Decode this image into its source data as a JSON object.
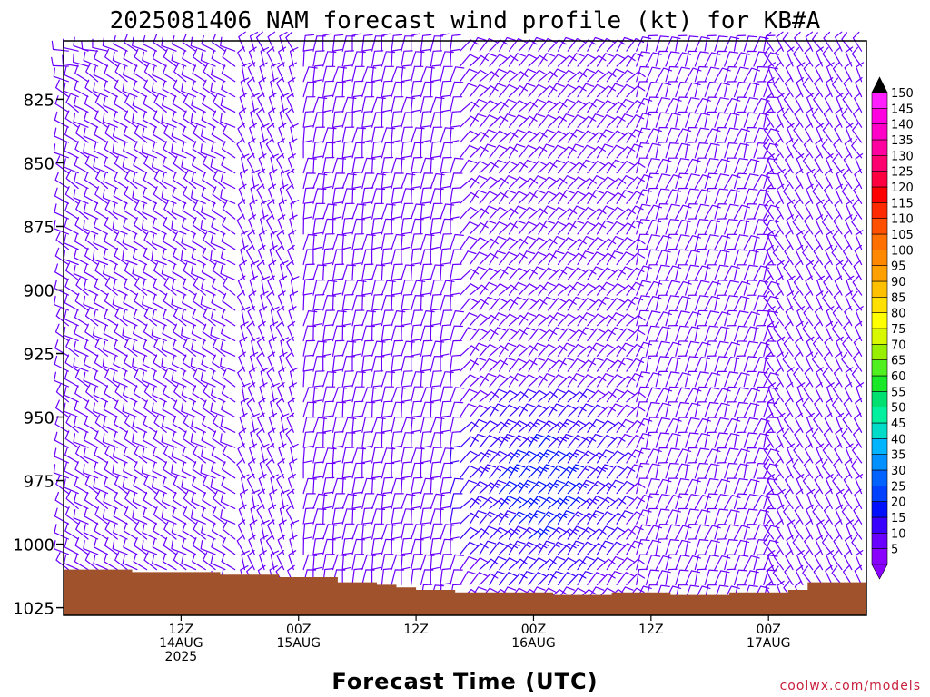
{
  "chart_data": {
    "type": "wind-barb-time-height",
    "title": "2025081406 NAM forecast wind profile (kt) for KB#A",
    "xlabel": "Forecast Time (UTC)",
    "ylabel": "",
    "credit": "coolwx.com/models",
    "y_axis": {
      "ticks": [
        "825",
        "850",
        "875",
        "900",
        "925",
        "950",
        "975",
        "1000",
        "1025"
      ],
      "tick_values": [
        825,
        850,
        875,
        900,
        925,
        950,
        975,
        1000,
        1025
      ],
      "range": [
        802,
        1028
      ],
      "reversed": true
    },
    "x_axis": {
      "range_hours": [
        -6,
        76
      ],
      "ticks": [
        {
          "hour": 6,
          "line1": "12Z",
          "line2": "14AUG",
          "line3": "2025"
        },
        {
          "hour": 18,
          "line1": "00Z",
          "line2": "15AUG",
          "line3": ""
        },
        {
          "hour": 30,
          "line1": "12Z",
          "line2": "",
          "line3": ""
        },
        {
          "hour": 42,
          "line1": "00Z",
          "line2": "16AUG",
          "line3": ""
        },
        {
          "hour": 54,
          "line1": "12Z",
          "line2": "",
          "line3": ""
        },
        {
          "hour": 66,
          "line1": "00Z",
          "line2": "17AUG",
          "line3": ""
        },
        {
          "hour": 78,
          "line1": "12Z",
          "line2": "",
          "line3": ""
        }
      ]
    },
    "terrain": {
      "color": "#a0522d",
      "hours": [
        -6,
        1,
        2,
        10,
        16,
        22,
        26,
        28,
        30,
        34,
        40,
        44,
        50,
        56,
        62,
        68,
        70,
        76
      ],
      "surface_mb": [
        1010,
        1011,
        1011,
        1012,
        1013,
        1015,
        1016,
        1017,
        1018,
        1019,
        1019,
        1020,
        1019,
        1020,
        1019,
        1018,
        1015,
        1014
      ]
    },
    "colorbar": {
      "labels": [
        "5",
        "10",
        "15",
        "20",
        "25",
        "30",
        "35",
        "40",
        "45",
        "50",
        "55",
        "60",
        "65",
        "70",
        "75",
        "80",
        "85",
        "90",
        "95",
        "100",
        "105",
        "110",
        "115",
        "120",
        "125",
        "130",
        "135",
        "140",
        "145",
        "150"
      ],
      "colors": [
        "#8a00ff",
        "#6a00ff",
        "#3a00ff",
        "#0010ff",
        "#0040ff",
        "#0062ff",
        "#0090ff",
        "#00b4ff",
        "#00dcc8",
        "#00f0a0",
        "#00e070",
        "#18e828",
        "#50f020",
        "#98f000",
        "#d8f800",
        "#ffff00",
        "#ffe000",
        "#ffc000",
        "#ffa000",
        "#ff8800",
        "#ff7000",
        "#ff5000",
        "#ff2a00",
        "#ff0000",
        "#ff0040",
        "#ff0070",
        "#ff00a0",
        "#ff00c8",
        "#ff00e0",
        "#ff20ff"
      ]
    },
    "wind_field": {
      "time_step_hours": 1,
      "pressure_levels_mb": [
        806,
        812,
        818,
        824,
        830,
        836,
        842,
        848,
        854,
        860,
        866,
        872,
        878,
        884,
        890,
        896,
        902,
        908,
        914,
        920,
        926,
        932,
        938,
        944,
        950,
        956,
        962,
        968,
        974,
        980,
        986,
        992,
        998,
        1004,
        1010,
        1016,
        1022
      ],
      "direction_regimes": [
        {
          "from_hour": -6,
          "to_hour": 12,
          "direction_deg": 300
        },
        {
          "from_hour": 12,
          "to_hour": 18,
          "direction_deg": 340
        },
        {
          "from_hour": 18,
          "to_hour": 34,
          "direction_deg": 10
        },
        {
          "from_hour": 34,
          "to_hour": 52,
          "direction_deg": 40
        },
        {
          "from_hour": 52,
          "to_hour": 66,
          "direction_deg": 20
        },
        {
          "from_hour": 66,
          "to_hour": 76,
          "direction_deg": 330
        }
      ],
      "speed_kt_typical": 10,
      "jet": {
        "center_hour": 42,
        "center_mb": 980,
        "peak_kt": 20
      }
    }
  }
}
